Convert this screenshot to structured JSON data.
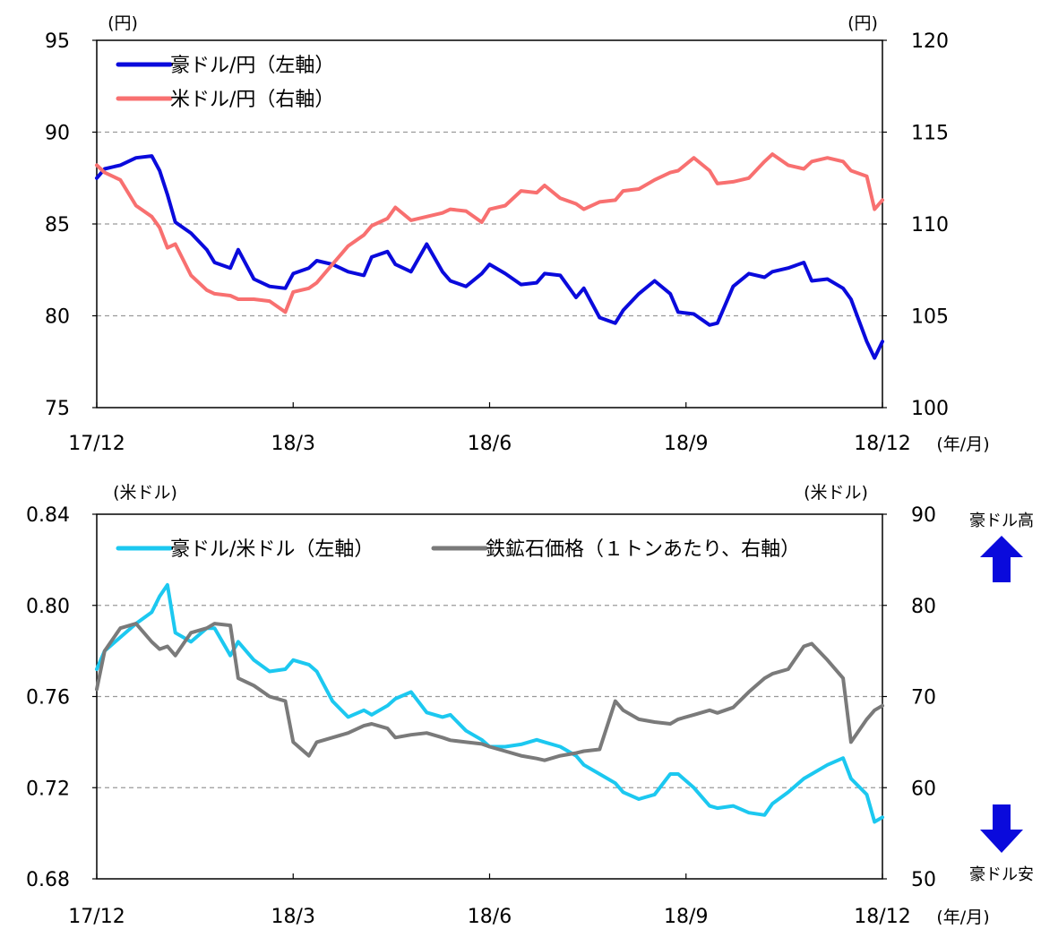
{
  "chart_data": [
    {
      "type": "line",
      "x_ticks": [
        "17/12",
        "18/3",
        "18/6",
        "18/9",
        "18/12"
      ],
      "x_unit": "(年/月)",
      "left_unit": "(円)",
      "right_unit": "(円)",
      "left_ticks": [
        "95",
        "90",
        "85",
        "80",
        "75"
      ],
      "right_ticks": [
        "120",
        "115",
        "110",
        "105",
        "100"
      ],
      "ylim_left": [
        75,
        95
      ],
      "ylim_right": [
        100,
        120
      ],
      "grid": "horizontal dashed",
      "legend_position": "top-left",
      "series": [
        {
          "name": "豪ドル/円（左軸）",
          "axis": "left",
          "color": "#0a0adc",
          "x": [
            0,
            0.01,
            0.03,
            0.05,
            0.07,
            0.08,
            0.09,
            0.1,
            0.12,
            0.14,
            0.15,
            0.17,
            0.18,
            0.2,
            0.22,
            0.24,
            0.25,
            0.27,
            0.28,
            0.3,
            0.32,
            0.34,
            0.35,
            0.37,
            0.38,
            0.4,
            0.42,
            0.44,
            0.45,
            0.47,
            0.49,
            0.5,
            0.52,
            0.54,
            0.56,
            0.57,
            0.59,
            0.61,
            0.62,
            0.64,
            0.66,
            0.67,
            0.69,
            0.71,
            0.73,
            0.74,
            0.76,
            0.78,
            0.79,
            0.81,
            0.83,
            0.85,
            0.86,
            0.88,
            0.9,
            0.91,
            0.93,
            0.95,
            0.96,
            0.98,
            0.99,
            1
          ],
          "values": [
            87.5,
            88.0,
            88.2,
            88.6,
            88.7,
            87.9,
            86.6,
            85.1,
            84.5,
            83.6,
            82.9,
            82.6,
            83.6,
            82.0,
            81.6,
            81.5,
            82.3,
            82.6,
            83.0,
            82.8,
            82.4,
            82.2,
            83.2,
            83.5,
            82.8,
            82.4,
            83.9,
            82.4,
            81.9,
            81.6,
            82.3,
            82.8,
            82.3,
            81.7,
            81.8,
            82.3,
            82.2,
            81.0,
            81.5,
            79.9,
            79.6,
            80.3,
            81.2,
            81.9,
            81.2,
            80.2,
            80.1,
            79.5,
            79.6,
            81.6,
            82.3,
            82.1,
            82.4,
            82.6,
            82.9,
            81.9,
            82.0,
            81.5,
            80.9,
            78.6,
            77.7,
            78.6
          ]
        },
        {
          "name": "米ドル/円（右軸）",
          "axis": "right",
          "color": "#f87070",
          "x": [
            0,
            0.01,
            0.03,
            0.05,
            0.07,
            0.08,
            0.09,
            0.1,
            0.12,
            0.14,
            0.15,
            0.17,
            0.18,
            0.2,
            0.22,
            0.24,
            0.25,
            0.27,
            0.28,
            0.3,
            0.32,
            0.34,
            0.35,
            0.37,
            0.38,
            0.4,
            0.42,
            0.44,
            0.45,
            0.47,
            0.49,
            0.5,
            0.52,
            0.54,
            0.56,
            0.57,
            0.59,
            0.61,
            0.62,
            0.64,
            0.66,
            0.67,
            0.69,
            0.71,
            0.73,
            0.74,
            0.76,
            0.78,
            0.79,
            0.81,
            0.83,
            0.85,
            0.86,
            0.88,
            0.9,
            0.91,
            0.93,
            0.95,
            0.96,
            0.98,
            0.99,
            1
          ],
          "values": [
            113.2,
            112.8,
            112.4,
            111.0,
            110.4,
            109.8,
            108.7,
            108.9,
            107.2,
            106.4,
            106.2,
            106.1,
            105.9,
            105.9,
            105.8,
            105.2,
            106.3,
            106.5,
            106.8,
            107.8,
            108.8,
            109.4,
            109.9,
            110.3,
            110.9,
            110.2,
            110.4,
            110.6,
            110.8,
            110.7,
            110.1,
            110.8,
            111.0,
            111.8,
            111.7,
            112.1,
            111.4,
            111.1,
            110.8,
            111.2,
            111.3,
            111.8,
            111.9,
            112.4,
            112.8,
            112.9,
            113.6,
            112.9,
            112.2,
            112.3,
            112.5,
            113.4,
            113.8,
            113.2,
            113.0,
            113.4,
            113.6,
            113.4,
            112.9,
            112.6,
            110.8,
            111.3
          ]
        }
      ]
    },
    {
      "type": "line",
      "x_ticks": [
        "17/12",
        "18/3",
        "18/6",
        "18/9",
        "18/12"
      ],
      "x_unit": "(年/月)",
      "left_unit": "(米ドル)",
      "right_unit": "(米ドル)",
      "left_ticks": [
        "0.84",
        "0.80",
        "0.76",
        "0.72",
        "0.68"
      ],
      "right_ticks": [
        "90",
        "80",
        "70",
        "60",
        "50"
      ],
      "ylim_left": [
        0.68,
        0.84
      ],
      "ylim_right": [
        50,
        90
      ],
      "grid": "horizontal dashed",
      "legend_position": "top",
      "series": [
        {
          "name": "豪ドル/米ドル（左軸）",
          "axis": "left",
          "color": "#1cc8f0",
          "x": [
            0,
            0.01,
            0.03,
            0.05,
            0.07,
            0.08,
            0.09,
            0.1,
            0.12,
            0.14,
            0.15,
            0.17,
            0.18,
            0.2,
            0.22,
            0.24,
            0.25,
            0.27,
            0.28,
            0.3,
            0.32,
            0.34,
            0.35,
            0.37,
            0.38,
            0.4,
            0.42,
            0.44,
            0.45,
            0.47,
            0.49,
            0.5,
            0.52,
            0.54,
            0.56,
            0.57,
            0.59,
            0.61,
            0.62,
            0.64,
            0.66,
            0.67,
            0.69,
            0.71,
            0.73,
            0.74,
            0.76,
            0.78,
            0.79,
            0.81,
            0.83,
            0.85,
            0.86,
            0.88,
            0.9,
            0.91,
            0.93,
            0.95,
            0.96,
            0.98,
            0.99,
            1
          ],
          "values": [
            0.772,
            0.78,
            0.786,
            0.792,
            0.797,
            0.804,
            0.809,
            0.788,
            0.784,
            0.79,
            0.79,
            0.778,
            0.784,
            0.776,
            0.771,
            0.772,
            0.776,
            0.774,
            0.771,
            0.758,
            0.751,
            0.754,
            0.752,
            0.756,
            0.759,
            0.762,
            0.753,
            0.751,
            0.752,
            0.745,
            0.741,
            0.738,
            0.738,
            0.739,
            0.741,
            0.74,
            0.738,
            0.734,
            0.73,
            0.726,
            0.722,
            0.718,
            0.715,
            0.717,
            0.726,
            0.726,
            0.72,
            0.712,
            0.711,
            0.712,
            0.709,
            0.708,
            0.713,
            0.718,
            0.724,
            0.726,
            0.73,
            0.733,
            0.724,
            0.717,
            0.705,
            0.707
          ]
        },
        {
          "name": "鉄鉱石価格（１トンあたり、右軸）",
          "axis": "right",
          "color": "#7a7a7a",
          "x": [
            0,
            0.01,
            0.03,
            0.05,
            0.07,
            0.08,
            0.09,
            0.1,
            0.12,
            0.14,
            0.15,
            0.17,
            0.18,
            0.2,
            0.22,
            0.24,
            0.25,
            0.27,
            0.28,
            0.3,
            0.32,
            0.34,
            0.35,
            0.37,
            0.38,
            0.4,
            0.42,
            0.44,
            0.45,
            0.47,
            0.49,
            0.5,
            0.52,
            0.54,
            0.56,
            0.57,
            0.59,
            0.61,
            0.62,
            0.64,
            0.66,
            0.67,
            0.69,
            0.71,
            0.73,
            0.74,
            0.76,
            0.78,
            0.79,
            0.81,
            0.83,
            0.85,
            0.86,
            0.88,
            0.9,
            0.91,
            0.93,
            0.95,
            0.96,
            0.98,
            0.99,
            1
          ],
          "values": [
            70.8,
            75.0,
            77.5,
            78.0,
            76.0,
            75.2,
            75.5,
            74.5,
            77.0,
            77.5,
            78.0,
            77.8,
            72.0,
            71.2,
            70.0,
            69.5,
            65.0,
            63.5,
            65.0,
            65.5,
            66.0,
            66.8,
            67.0,
            66.5,
            65.5,
            65.8,
            66.0,
            65.5,
            65.2,
            65.0,
            64.8,
            64.5,
            64.0,
            63.5,
            63.2,
            63.0,
            63.5,
            63.8,
            64.0,
            64.2,
            69.5,
            68.5,
            67.5,
            67.2,
            67.0,
            67.5,
            68.0,
            68.5,
            68.2,
            68.8,
            70.5,
            72.0,
            72.5,
            73.0,
            75.5,
            75.8,
            74.0,
            72.0,
            65.0,
            67.5,
            68.5,
            69.0
          ]
        }
      ]
    }
  ],
  "side_labels": {
    "up": "豪ドル高",
    "down": "豪ドル安"
  },
  "colors": {
    "arrow": "#0a0adc",
    "grid": "#9a9a9a",
    "axis": "#000000"
  }
}
